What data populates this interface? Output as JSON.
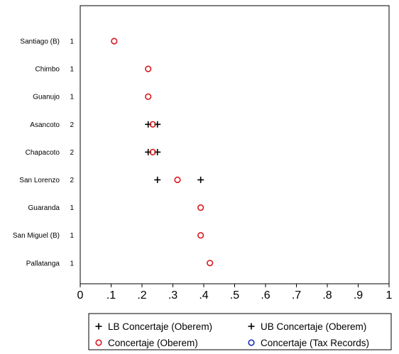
{
  "chart_data": {
    "type": "scatter",
    "orientation": "horizontal-dot-plot",
    "title": "",
    "xlabel": "",
    "ylabel": "",
    "xlim": [
      0,
      1
    ],
    "x_ticks": [
      "0",
      ".1",
      ".2",
      ".3",
      ".4",
      ".5",
      ".6",
      ".7",
      ".8",
      ".9",
      "1"
    ],
    "grid": false,
    "legend_position": "bottom",
    "categories": [
      {
        "label": "Santiago (B)",
        "count": "1"
      },
      {
        "label": "Chimbo",
        "count": "1"
      },
      {
        "label": "Guanujo",
        "count": "1"
      },
      {
        "label": "Asancoto",
        "count": "2"
      },
      {
        "label": "Chapacoto",
        "count": "2"
      },
      {
        "label": "San Lorenzo",
        "count": "2"
      },
      {
        "label": "Guaranda",
        "count": "1"
      },
      {
        "label": "San Miguel (B)",
        "count": "1"
      },
      {
        "label": "Pallatanga",
        "count": "1"
      }
    ],
    "series": [
      {
        "name": "LB Concertaje (Oberem)",
        "marker": "plus",
        "color": "#000000",
        "values": [
          null,
          null,
          null,
          0.22,
          0.22,
          0.25,
          null,
          null,
          null
        ]
      },
      {
        "name": "UB Concertaje (Oberem)",
        "marker": "plus",
        "color": "#000000",
        "values": [
          null,
          null,
          null,
          0.25,
          0.25,
          0.39,
          null,
          null,
          null
        ]
      },
      {
        "name": "Concertaje (Oberem)",
        "marker": "circle",
        "color": "#d9191f",
        "values": [
          0.11,
          0.22,
          0.22,
          0.235,
          0.235,
          0.315,
          0.39,
          0.39,
          0.42
        ]
      },
      {
        "name": "Concertaje (Tax Records)",
        "marker": "circle",
        "color": "#1a2fbf",
        "values": [
          null,
          null,
          null,
          null,
          null,
          null,
          null,
          null,
          null
        ]
      }
    ]
  }
}
